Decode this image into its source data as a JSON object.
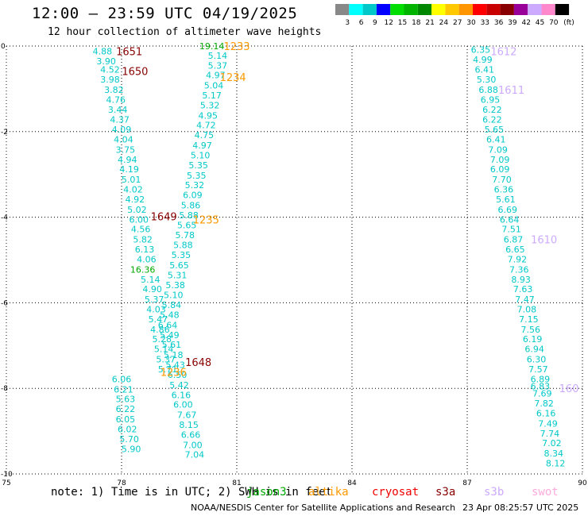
{
  "header": {
    "title": "12:00 — 23:59 UTC 04/19/2025",
    "subtitle": "12 hour collection of altimeter wave heights"
  },
  "legend": {
    "unit": "(ft)",
    "bins": [
      {
        "label": "3",
        "color": "#888888"
      },
      {
        "label": "6",
        "color": "#00ffff"
      },
      {
        "label": "9",
        "color": "#00c8c8"
      },
      {
        "label": "12",
        "color": "#0000ff"
      },
      {
        "label": "15",
        "color": "#00dd00"
      },
      {
        "label": "18",
        "color": "#00b400"
      },
      {
        "label": "21",
        "color": "#008800"
      },
      {
        "label": "24",
        "color": "#ffff00"
      },
      {
        "label": "27",
        "color": "#ffc800"
      },
      {
        "label": "30",
        "color": "#ff9600"
      },
      {
        "label": "33",
        "color": "#ff0000"
      },
      {
        "label": "36",
        "color": "#c80000"
      },
      {
        "label": "39",
        "color": "#880000"
      },
      {
        "label": "42",
        "color": "#990099"
      },
      {
        "label": "45",
        "color": "#ccaaff"
      },
      {
        "label": "70",
        "color": "#ff88cc"
      },
      {
        "label": "",
        "color": "#000000"
      }
    ]
  },
  "footer": {
    "note": "note: 1) Time is in UTC; 2) SWH is in feet",
    "satellites": [
      {
        "name": "jason3",
        "color": "#00aa00"
      },
      {
        "name": "altika",
        "color": "#ff9900"
      },
      {
        "name": "cryosat",
        "color": "#ee0000"
      },
      {
        "name": "s3a",
        "color": "#880000"
      },
      {
        "name": "s3b",
        "color": "#ccaaff"
      },
      {
        "name": "swot",
        "color": "#ffaadd"
      }
    ],
    "credit": "NOAA/NESDIS Center for Satellite Applications and Research",
    "updated": "23 Apr 08:25:57 UTC 2025"
  },
  "chart_data": {
    "type": "scatter",
    "title": "12:00 — 23:59 UTC 04/19/2025",
    "xlabel": "",
    "ylabel": "",
    "xlim": [
      75,
      90
    ],
    "ylim": [
      -10,
      0
    ],
    "x_ticks": [
      75,
      78,
      81,
      84,
      87,
      90
    ],
    "y_ticks": [
      0,
      -2,
      -4,
      -6,
      -8,
      -10
    ],
    "grid": true,
    "colors": {
      "cyan": "#00c8c8",
      "green": "#00aa00",
      "orange": "#ff9900",
      "maroon": "#880000",
      "lavender": "#ccaaff"
    },
    "points": [
      {
        "x": 77.5,
        "y": -0.12,
        "v": "4.88",
        "c": "cyan"
      },
      {
        "x": 77.6,
        "y": -0.35,
        "v": "3.90",
        "c": "cyan"
      },
      {
        "x": 77.7,
        "y": -0.55,
        "v": "4.52",
        "c": "cyan"
      },
      {
        "x": 77.7,
        "y": -0.78,
        "v": "3.98",
        "c": "cyan"
      },
      {
        "x": 77.8,
        "y": -1.02,
        "v": "3.82",
        "c": "cyan"
      },
      {
        "x": 77.85,
        "y": -1.25,
        "v": "4.76",
        "c": "cyan"
      },
      {
        "x": 77.9,
        "y": -1.48,
        "v": "3.44",
        "c": "cyan"
      },
      {
        "x": 77.95,
        "y": -1.72,
        "v": "4.37",
        "c": "cyan"
      },
      {
        "x": 78.0,
        "y": -1.95,
        "v": "4.09",
        "c": "cyan"
      },
      {
        "x": 78.05,
        "y": -2.18,
        "v": "4.04",
        "c": "cyan"
      },
      {
        "x": 78.1,
        "y": -2.42,
        "v": "3.75",
        "c": "cyan"
      },
      {
        "x": 78.15,
        "y": -2.65,
        "v": "4.94",
        "c": "cyan"
      },
      {
        "x": 78.2,
        "y": -2.88,
        "v": "4.19",
        "c": "cyan"
      },
      {
        "x": 78.25,
        "y": -3.12,
        "v": "5.01",
        "c": "cyan"
      },
      {
        "x": 78.3,
        "y": -3.35,
        "v": "4.02",
        "c": "cyan"
      },
      {
        "x": 78.35,
        "y": -3.58,
        "v": "4.92",
        "c": "cyan"
      },
      {
        "x": 78.4,
        "y": -3.82,
        "v": "5.02",
        "c": "cyan"
      },
      {
        "x": 78.45,
        "y": -4.05,
        "v": "6.00",
        "c": "cyan"
      },
      {
        "x": 78.5,
        "y": -4.28,
        "v": "4.56",
        "c": "cyan"
      },
      {
        "x": 78.55,
        "y": -4.52,
        "v": "5.82",
        "c": "cyan"
      },
      {
        "x": 78.6,
        "y": -4.75,
        "v": "6.13",
        "c": "cyan"
      },
      {
        "x": 78.65,
        "y": -4.98,
        "v": "4.06",
        "c": "cyan"
      },
      {
        "x": 78.55,
        "y": -5.22,
        "v": "16.36",
        "c": "green"
      },
      {
        "x": 78.75,
        "y": -5.45,
        "v": "5.14",
        "c": "cyan"
      },
      {
        "x": 78.8,
        "y": -5.68,
        "v": "4.90",
        "c": "cyan"
      },
      {
        "x": 78.85,
        "y": -5.92,
        "v": "5.37",
        "c": "cyan"
      },
      {
        "x": 78.9,
        "y": -6.15,
        "v": "4.03",
        "c": "cyan"
      },
      {
        "x": 78.95,
        "y": -6.38,
        "v": "5.47",
        "c": "cyan"
      },
      {
        "x": 79.0,
        "y": -6.62,
        "v": "4.86",
        "c": "cyan"
      },
      {
        "x": 79.05,
        "y": -6.85,
        "v": "5.28",
        "c": "cyan"
      },
      {
        "x": 79.1,
        "y": -7.08,
        "v": "5.14",
        "c": "cyan"
      },
      {
        "x": 79.15,
        "y": -7.32,
        "v": "5.37",
        "c": "cyan"
      },
      {
        "x": 79.2,
        "y": -7.55,
        "v": "5.71",
        "c": "cyan"
      },
      {
        "x": 78.0,
        "y": -7.78,
        "v": "6.06",
        "c": "cyan"
      },
      {
        "x": 78.05,
        "y": -8.02,
        "v": "6.21",
        "c": "cyan"
      },
      {
        "x": 78.1,
        "y": -8.25,
        "v": "5.63",
        "c": "cyan"
      },
      {
        "x": 78.1,
        "y": -8.48,
        "v": "6.22",
        "c": "cyan"
      },
      {
        "x": 78.1,
        "y": -8.72,
        "v": "6.05",
        "c": "cyan"
      },
      {
        "x": 78.15,
        "y": -8.95,
        "v": "6.02",
        "c": "cyan"
      },
      {
        "x": 78.2,
        "y": -9.18,
        "v": "5.70",
        "c": "cyan"
      },
      {
        "x": 78.25,
        "y": -9.42,
        "v": "5.90",
        "c": "cyan"
      },
      {
        "x": 80.35,
        "y": 0.0,
        "v": "19.14",
        "c": "green"
      },
      {
        "x": 80.5,
        "y": -0.22,
        "v": "5.14",
        "c": "cyan"
      },
      {
        "x": 80.5,
        "y": -0.45,
        "v": "5.37",
        "c": "cyan"
      },
      {
        "x": 80.45,
        "y": -0.68,
        "v": "4.97",
        "c": "cyan"
      },
      {
        "x": 80.4,
        "y": -0.92,
        "v": "5.04",
        "c": "cyan"
      },
      {
        "x": 80.35,
        "y": -1.15,
        "v": "5.17",
        "c": "cyan"
      },
      {
        "x": 80.3,
        "y": -1.38,
        "v": "5.32",
        "c": "cyan"
      },
      {
        "x": 80.25,
        "y": -1.62,
        "v": "4.95",
        "c": "cyan"
      },
      {
        "x": 80.2,
        "y": -1.85,
        "v": "4.72",
        "c": "cyan"
      },
      {
        "x": 80.15,
        "y": -2.08,
        "v": "4.75",
        "c": "cyan"
      },
      {
        "x": 80.1,
        "y": -2.32,
        "v": "4.97",
        "c": "cyan"
      },
      {
        "x": 80.05,
        "y": -2.55,
        "v": "5.10",
        "c": "cyan"
      },
      {
        "x": 80.0,
        "y": -2.78,
        "v": "5.35",
        "c": "cyan"
      },
      {
        "x": 79.95,
        "y": -3.02,
        "v": "5.35",
        "c": "cyan"
      },
      {
        "x": 79.9,
        "y": -3.25,
        "v": "5.32",
        "c": "cyan"
      },
      {
        "x": 79.85,
        "y": -3.48,
        "v": "6.09",
        "c": "cyan"
      },
      {
        "x": 79.8,
        "y": -3.72,
        "v": "5.86",
        "c": "cyan"
      },
      {
        "x": 79.75,
        "y": -3.95,
        "v": "5.88",
        "c": "cyan"
      },
      {
        "x": 79.7,
        "y": -4.18,
        "v": "5.65",
        "c": "cyan"
      },
      {
        "x": 79.65,
        "y": -4.42,
        "v": "5.78",
        "c": "cyan"
      },
      {
        "x": 79.6,
        "y": -4.65,
        "v": "5.88",
        "c": "cyan"
      },
      {
        "x": 79.55,
        "y": -4.88,
        "v": "5.35",
        "c": "cyan"
      },
      {
        "x": 79.5,
        "y": -5.12,
        "v": "5.65",
        "c": "cyan"
      },
      {
        "x": 79.45,
        "y": -5.35,
        "v": "5.31",
        "c": "cyan"
      },
      {
        "x": 79.4,
        "y": -5.58,
        "v": "5.38",
        "c": "cyan"
      },
      {
        "x": 79.35,
        "y": -5.82,
        "v": "5.10",
        "c": "cyan"
      },
      {
        "x": 79.3,
        "y": -6.05,
        "v": "5.84",
        "c": "cyan"
      },
      {
        "x": 79.25,
        "y": -6.28,
        "v": "5.48",
        "c": "cyan"
      },
      {
        "x": 79.2,
        "y": -6.52,
        "v": "6.64",
        "c": "cyan"
      },
      {
        "x": 79.25,
        "y": -6.75,
        "v": "5.49",
        "c": "cyan"
      },
      {
        "x": 79.3,
        "y": -6.98,
        "v": "5.61",
        "c": "cyan"
      },
      {
        "x": 79.35,
        "y": -7.22,
        "v": "5.18",
        "c": "cyan"
      },
      {
        "x": 79.4,
        "y": -7.45,
        "v": "5.43",
        "c": "cyan"
      },
      {
        "x": 79.45,
        "y": -7.68,
        "v": "6.50",
        "c": "cyan"
      },
      {
        "x": 79.5,
        "y": -7.92,
        "v": "5.42",
        "c": "cyan"
      },
      {
        "x": 79.55,
        "y": -8.15,
        "v": "6.16",
        "c": "cyan"
      },
      {
        "x": 79.6,
        "y": -8.38,
        "v": "6.00",
        "c": "cyan"
      },
      {
        "x": 79.7,
        "y": -8.62,
        "v": "7.67",
        "c": "cyan"
      },
      {
        "x": 79.75,
        "y": -8.85,
        "v": "8.15",
        "c": "cyan"
      },
      {
        "x": 79.8,
        "y": -9.08,
        "v": "6.66",
        "c": "cyan"
      },
      {
        "x": 79.85,
        "y": -9.32,
        "v": "7.00",
        "c": "cyan"
      },
      {
        "x": 79.9,
        "y": -9.55,
        "v": "7.04",
        "c": "cyan"
      },
      {
        "x": 87.35,
        "y": -0.08,
        "v": "6.35",
        "c": "cyan"
      },
      {
        "x": 87.4,
        "y": -0.32,
        "v": "4.99",
        "c": "cyan"
      },
      {
        "x": 87.45,
        "y": -0.55,
        "v": "6.41",
        "c": "cyan"
      },
      {
        "x": 87.5,
        "y": -0.78,
        "v": "5.30",
        "c": "cyan"
      },
      {
        "x": 87.55,
        "y": -1.02,
        "v": "6.88",
        "c": "cyan"
      },
      {
        "x": 87.6,
        "y": -1.25,
        "v": "6.95",
        "c": "cyan"
      },
      {
        "x": 87.65,
        "y": -1.48,
        "v": "6.22",
        "c": "cyan"
      },
      {
        "x": 87.65,
        "y": -1.72,
        "v": "6.22",
        "c": "cyan"
      },
      {
        "x": 87.7,
        "y": -1.95,
        "v": "5.65",
        "c": "cyan"
      },
      {
        "x": 87.75,
        "y": -2.18,
        "v": "6.41",
        "c": "cyan"
      },
      {
        "x": 87.8,
        "y": -2.42,
        "v": "7.09",
        "c": "cyan"
      },
      {
        "x": 87.85,
        "y": -2.65,
        "v": "7.09",
        "c": "cyan"
      },
      {
        "x": 87.85,
        "y": -2.88,
        "v": "6.09",
        "c": "cyan"
      },
      {
        "x": 87.9,
        "y": -3.12,
        "v": "7.70",
        "c": "cyan"
      },
      {
        "x": 87.95,
        "y": -3.35,
        "v": "6.36",
        "c": "cyan"
      },
      {
        "x": 88.0,
        "y": -3.58,
        "v": "5.61",
        "c": "cyan"
      },
      {
        "x": 88.05,
        "y": -3.82,
        "v": "6.69",
        "c": "cyan"
      },
      {
        "x": 88.1,
        "y": -4.05,
        "v": "6.64",
        "c": "cyan"
      },
      {
        "x": 88.15,
        "y": -4.28,
        "v": "7.51",
        "c": "cyan"
      },
      {
        "x": 88.2,
        "y": -4.52,
        "v": "6.87",
        "c": "cyan"
      },
      {
        "x": 88.25,
        "y": -4.75,
        "v": "6.65",
        "c": "cyan"
      },
      {
        "x": 88.3,
        "y": -4.98,
        "v": "7.92",
        "c": "cyan"
      },
      {
        "x": 88.35,
        "y": -5.22,
        "v": "7.36",
        "c": "cyan"
      },
      {
        "x": 88.4,
        "y": -5.45,
        "v": "8.93",
        "c": "cyan"
      },
      {
        "x": 88.45,
        "y": -5.68,
        "v": "7.63",
        "c": "cyan"
      },
      {
        "x": 88.5,
        "y": -5.92,
        "v": "7.47",
        "c": "cyan"
      },
      {
        "x": 88.55,
        "y": -6.15,
        "v": "7.08",
        "c": "cyan"
      },
      {
        "x": 88.6,
        "y": -6.38,
        "v": "7.15",
        "c": "cyan"
      },
      {
        "x": 88.65,
        "y": -6.62,
        "v": "7.56",
        "c": "cyan"
      },
      {
        "x": 88.7,
        "y": -6.85,
        "v": "6.19",
        "c": "cyan"
      },
      {
        "x": 88.75,
        "y": -7.08,
        "v": "6.94",
        "c": "cyan"
      },
      {
        "x": 88.8,
        "y": -7.32,
        "v": "6.30",
        "c": "cyan"
      },
      {
        "x": 88.85,
        "y": -7.55,
        "v": "7.57",
        "c": "cyan"
      },
      {
        "x": 88.9,
        "y": -7.78,
        "v": "6.89",
        "c": "cyan"
      },
      {
        "x": 88.9,
        "y": -7.95,
        "v": "6.83",
        "c": "cyan"
      },
      {
        "x": 88.95,
        "y": -8.12,
        "v": "7.69",
        "c": "cyan"
      },
      {
        "x": 89.0,
        "y": -8.35,
        "v": "7.82",
        "c": "cyan"
      },
      {
        "x": 89.05,
        "y": -8.58,
        "v": "6.16",
        "c": "cyan"
      },
      {
        "x": 89.1,
        "y": -8.82,
        "v": "7.49",
        "c": "cyan"
      },
      {
        "x": 89.15,
        "y": -9.05,
        "v": "7.74",
        "c": "cyan"
      },
      {
        "x": 89.2,
        "y": -9.28,
        "v": "7.02",
        "c": "cyan"
      },
      {
        "x": 89.25,
        "y": -9.52,
        "v": "8.34",
        "c": "cyan"
      },
      {
        "x": 89.3,
        "y": -9.75,
        "v": "8.12",
        "c": "cyan"
      }
    ],
    "pass_labels": [
      {
        "x": 78.2,
        "y": -0.12,
        "text": "1651",
        "c": "maroon"
      },
      {
        "x": 78.35,
        "y": -0.58,
        "text": "1650",
        "c": "maroon"
      },
      {
        "x": 81.0,
        "y": 0.0,
        "text": "1233",
        "c": "orange"
      },
      {
        "x": 80.9,
        "y": -0.72,
        "text": "1234",
        "c": "orange"
      },
      {
        "x": 87.95,
        "y": -0.12,
        "text": "1612",
        "c": "lavender"
      },
      {
        "x": 88.15,
        "y": -1.02,
        "text": "1611",
        "c": "lavender"
      },
      {
        "x": 79.1,
        "y": -3.98,
        "text": "1649",
        "c": "maroon"
      },
      {
        "x": 80.2,
        "y": -4.05,
        "text": "1235",
        "c": "orange"
      },
      {
        "x": 89.0,
        "y": -4.52,
        "text": "1610",
        "c": "lavender"
      },
      {
        "x": 80.0,
        "y": -7.38,
        "text": "1648",
        "c": "maroon"
      },
      {
        "x": 79.35,
        "y": -7.62,
        "text": "1236",
        "c": "orange"
      },
      {
        "x": 89.65,
        "y": -8.0,
        "text": "160",
        "c": "lavender"
      }
    ]
  }
}
